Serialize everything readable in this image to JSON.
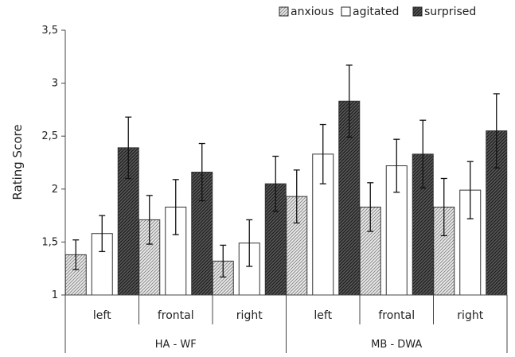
{
  "chart_data": {
    "type": "bar",
    "ylabel": "Rating Score",
    "ylim": [
      1,
      3.5
    ],
    "yticks": [
      "1",
      "1,5",
      "2",
      "2,5",
      "3",
      "3,5"
    ],
    "ytick_values": [
      1,
      1.5,
      2,
      2.5,
      3,
      3.5
    ],
    "categories": [
      "left",
      "frontal",
      "right",
      "left",
      "frontal",
      "right"
    ],
    "groups": [
      {
        "label": "HA - WF",
        "span": 3
      },
      {
        "label": "MB - DWA",
        "span": 3
      }
    ],
    "legend_position": "top-right",
    "series": [
      {
        "name": "anxious",
        "values": [
          1.38,
          1.71,
          1.32,
          1.93,
          1.83,
          1.83
        ],
        "error": [
          0.14,
          0.23,
          0.15,
          0.25,
          0.23,
          0.27
        ],
        "pattern": "light-hatch"
      },
      {
        "name": "agitated",
        "values": [
          1.58,
          1.83,
          1.49,
          2.33,
          2.22,
          1.99
        ],
        "error": [
          0.17,
          0.26,
          0.22,
          0.28,
          0.25,
          0.27
        ],
        "pattern": "white"
      },
      {
        "name": "surprised",
        "values": [
          2.39,
          2.16,
          2.05,
          2.83,
          2.33,
          2.55
        ],
        "error": [
          0.29,
          0.27,
          0.26,
          0.34,
          0.32,
          0.35
        ],
        "pattern": "dark-hatch"
      }
    ]
  }
}
